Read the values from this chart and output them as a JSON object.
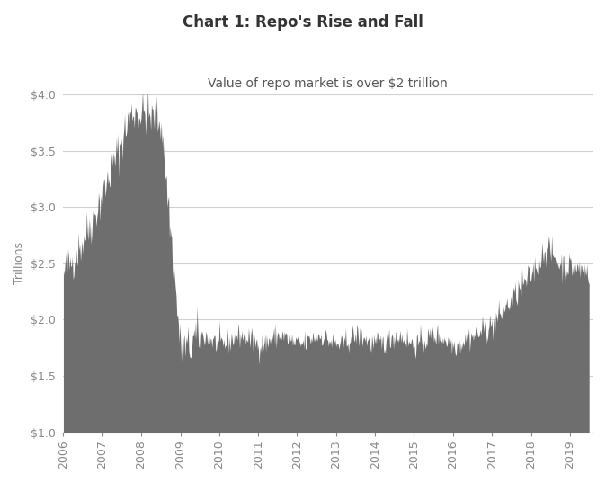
{
  "title": "Chart 1: Repo's Rise and Fall",
  "subtitle": "Value of repo market is over $2 trillion",
  "ylabel": "Trillions",
  "ylim": [
    1.0,
    4.0
  ],
  "yticks": [
    1.0,
    1.5,
    2.0,
    2.5,
    3.0,
    3.5,
    4.0
  ],
  "ytick_labels": [
    "$1.0",
    "$1.5",
    "$2.0",
    "$2.5",
    "$3.0",
    "$3.5",
    "$4.0"
  ],
  "xtick_years": [
    2006,
    2007,
    2008,
    2009,
    2010,
    2011,
    2012,
    2013,
    2014,
    2015,
    2016,
    2017,
    2018,
    2019
  ],
  "fill_color": "#6e6e6e",
  "background_color": "#ffffff",
  "title_fontsize": 12,
  "subtitle_fontsize": 10,
  "ylabel_fontsize": 9,
  "tick_fontsize": 9,
  "title_color": "#333333",
  "subtitle_color": "#555555",
  "tick_color": "#888888",
  "grid_color": "#d0d0d0",
  "seed": 42
}
